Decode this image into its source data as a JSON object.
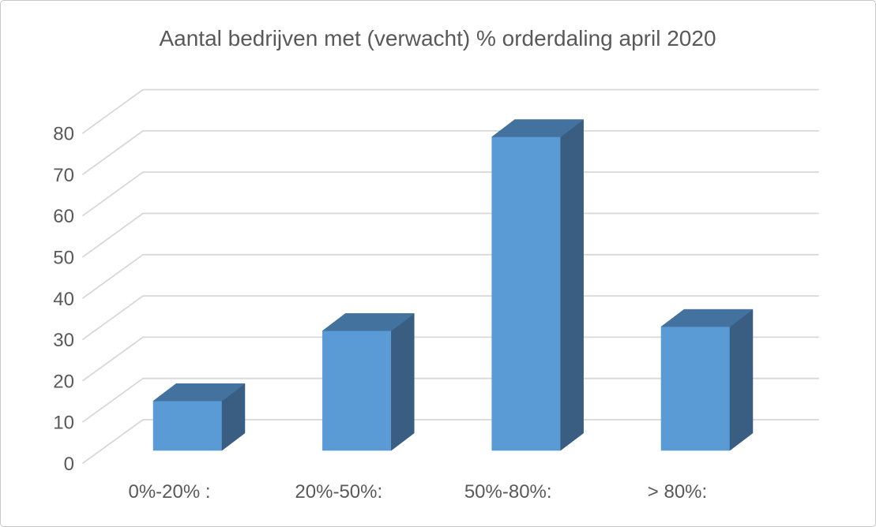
{
  "chart_data": {
    "type": "bar",
    "variant": "3d-clustered-column",
    "title": "Aantal bedrijven met (verwacht) % orderdaling april 2020",
    "categories": [
      "0%-20% :",
      "20%-50%:",
      "50%-80%:",
      "> 80%:"
    ],
    "values": [
      12,
      29,
      76,
      30
    ],
    "xlabel": "",
    "ylabel": "",
    "ylim": [
      0,
      80
    ],
    "ytick_step": 10,
    "yticks": [
      0,
      10,
      20,
      30,
      40,
      50,
      60,
      70,
      80
    ],
    "grid": true,
    "legend": false,
    "colors": {
      "bar_front": "#5B9BD5",
      "bar_top": "#44729F",
      "bar_side": "#395E82",
      "gridline": "#D8D8D8",
      "text": "#595959",
      "background": "#FFFFFF",
      "frame_border": "#C9C9C9"
    }
  }
}
